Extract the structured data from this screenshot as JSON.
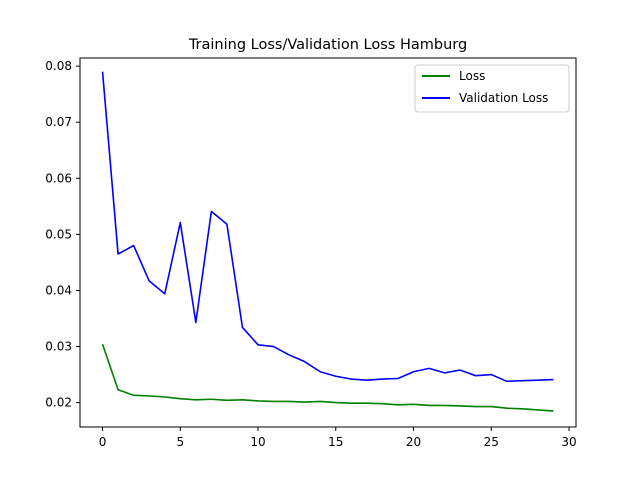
{
  "chart_data": {
    "type": "line",
    "title": "Training Loss/Validation Loss Hamburg",
    "xlabel": "",
    "ylabel": "",
    "xlim": [
      -1.45,
      30.45
    ],
    "ylim": [
      0.01565,
      0.08145
    ],
    "xticks": [
      0,
      5,
      10,
      15,
      20,
      25,
      30
    ],
    "yticks": [
      0.02,
      0.03,
      0.04,
      0.05,
      0.06,
      0.07,
      0.08
    ],
    "xtick_labels": [
      "0",
      "5",
      "10",
      "15",
      "20",
      "25",
      "30"
    ],
    "ytick_labels": [
      "0.02",
      "0.03",
      "0.04",
      "0.05",
      "0.06",
      "0.07",
      "0.08"
    ],
    "grid": false,
    "legend_position": "upper-right",
    "x": [
      0,
      1,
      2,
      3,
      4,
      5,
      6,
      7,
      8,
      9,
      10,
      11,
      12,
      13,
      14,
      15,
      16,
      17,
      18,
      19,
      20,
      21,
      22,
      23,
      24,
      25,
      26,
      27,
      28,
      29
    ],
    "series": [
      {
        "name": "Loss",
        "color": "#008000",
        "values": [
          0.0304,
          0.0223,
          0.0213,
          0.0212,
          0.021,
          0.0207,
          0.0205,
          0.0206,
          0.0204,
          0.0205,
          0.0203,
          0.0202,
          0.0202,
          0.0201,
          0.0202,
          0.02,
          0.0199,
          0.0199,
          0.0198,
          0.0196,
          0.0197,
          0.0195,
          0.0195,
          0.0194,
          0.0193,
          0.0193,
          0.019,
          0.0189,
          0.0187,
          0.0185
        ]
      },
      {
        "name": "Validation Loss",
        "color": "#0000ff",
        "values": [
          0.079,
          0.0465,
          0.048,
          0.0417,
          0.0394,
          0.0521,
          0.0343,
          0.0541,
          0.0518,
          0.0334,
          0.0303,
          0.03,
          0.0285,
          0.0273,
          0.0255,
          0.0247,
          0.0242,
          0.024,
          0.0242,
          0.0243,
          0.0255,
          0.0261,
          0.0253,
          0.0258,
          0.0248,
          0.025,
          0.0238,
          0.0239,
          0.024,
          0.0241
        ]
      }
    ]
  }
}
